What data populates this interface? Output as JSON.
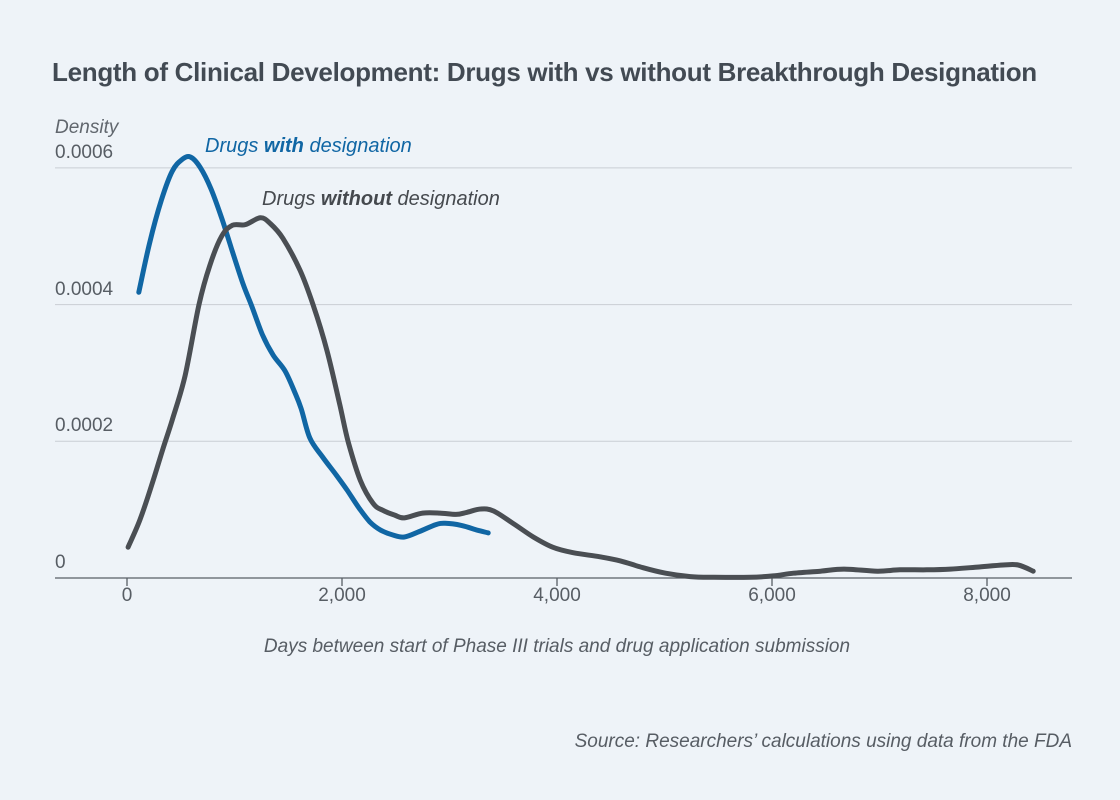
{
  "page": {
    "title": "Length of Clinical Development: Drugs with vs without Breakthrough Designation"
  },
  "legend": {
    "with": {
      "pre": "Drugs ",
      "bold": "with",
      "post": " designation"
    },
    "without": {
      "pre": "Drugs ",
      "bold": "without",
      "post": " designation"
    }
  },
  "chart": {
    "y_axis_title": "Density",
    "x_axis_caption": "Days between start of Phase III trials and drug application submission",
    "source": "Source: Researchers’ calculations using data from the FDA"
  },
  "colors": {
    "background": "#eef3f8",
    "with_designation_line": "#1066a4",
    "without_designation_line": "#4a4e53",
    "gridline": "#c9ced4",
    "axis": "#585e64",
    "title_text": "#424a53",
    "tick_text": "#575d64"
  },
  "chart_data": {
    "type": "line",
    "title": "Length of Clinical Development: Drugs with vs without Breakthrough Designation",
    "xlabel": "Days between start of Phase III trials and drug application submission",
    "ylabel": "Density",
    "xlim": [
      -670,
      8790
    ],
    "ylim": [
      0,
      0.00065
    ],
    "grid": "horizontal",
    "legend_position": "inline-curve-labels",
    "x_ticks": [
      {
        "value": 0,
        "label": "0"
      },
      {
        "value": 2000,
        "label": "2,000"
      },
      {
        "value": 4000,
        "label": "4,000"
      },
      {
        "value": 6000,
        "label": "6,000"
      },
      {
        "value": 8000,
        "label": "8,000"
      }
    ],
    "y_ticks": [
      {
        "value": 0,
        "label": "0"
      },
      {
        "value": 0.0002,
        "label": "0.0002"
      },
      {
        "value": 0.0004,
        "label": "0.0004"
      },
      {
        "value": 0.0006,
        "label": "0.0006"
      }
    ],
    "series": [
      {
        "name": "Drugs with designation",
        "color": "#1066a4",
        "points": [
          [
            110,
            0.000418
          ],
          [
            210,
            0.00049
          ],
          [
            320,
            0.000553
          ],
          [
            420,
            0.000595
          ],
          [
            510,
            0.000612
          ],
          [
            590,
            0.000616
          ],
          [
            680,
            0.000601
          ],
          [
            780,
            0.00057
          ],
          [
            880,
            0.000527
          ],
          [
            980,
            0.000478
          ],
          [
            1080,
            0.00043
          ],
          [
            1160,
            0.000398
          ],
          [
            1260,
            0.000356
          ],
          [
            1360,
            0.000326
          ],
          [
            1470,
            0.000303
          ],
          [
            1560,
            0.000272
          ],
          [
            1620,
            0.000248
          ],
          [
            1700,
            0.000205
          ],
          [
            1820,
            0.000177
          ],
          [
            1950,
            0.00015
          ],
          [
            2050,
            0.000128
          ],
          [
            2160,
            0.000102
          ],
          [
            2260,
            8.2e-05
          ],
          [
            2360,
            7e-05
          ],
          [
            2470,
            6.3e-05
          ],
          [
            2580,
            6e-05
          ],
          [
            2720,
            6.8e-05
          ],
          [
            2870,
            7.8e-05
          ],
          [
            2960,
            8e-05
          ],
          [
            3110,
            7.7e-05
          ],
          [
            3260,
            7e-05
          ],
          [
            3360,
            6.6e-05
          ]
        ]
      },
      {
        "name": "Drugs without designation",
        "color": "#4a4e53",
        "points": [
          [
            10,
            4.5e-05
          ],
          [
            120,
            8.5e-05
          ],
          [
            230,
            0.000136
          ],
          [
            330,
            0.000187
          ],
          [
            420,
            0.000231
          ],
          [
            540,
            0.000296
          ],
          [
            670,
            0.0004
          ],
          [
            770,
            0.000457
          ],
          [
            880,
            0.0005
          ],
          [
            980,
            0.000516
          ],
          [
            1100,
            0.000517
          ],
          [
            1240,
            0.000527
          ],
          [
            1330,
            0.000519
          ],
          [
            1450,
            0.000497
          ],
          [
            1610,
            0.00045
          ],
          [
            1730,
            0.0004
          ],
          [
            1860,
            0.000333
          ],
          [
            1980,
            0.000253
          ],
          [
            2060,
            0.000198
          ],
          [
            2170,
            0.000143
          ],
          [
            2290,
            0.000109
          ],
          [
            2380,
            9.9e-05
          ],
          [
            2490,
            9.2e-05
          ],
          [
            2580,
            8.8e-05
          ],
          [
            2750,
            9.5e-05
          ],
          [
            2910,
            9.5e-05
          ],
          [
            3060,
            9.3e-05
          ],
          [
            3160,
            9.6e-05
          ],
          [
            3290,
            0.000101
          ],
          [
            3410,
            9.8e-05
          ],
          [
            3590,
            8e-05
          ],
          [
            3780,
            6e-05
          ],
          [
            3960,
            4.5e-05
          ],
          [
            4150,
            3.7e-05
          ],
          [
            4400,
            3.1e-05
          ],
          [
            4590,
            2.5e-05
          ],
          [
            4800,
            1.5e-05
          ],
          [
            5010,
            7e-06
          ],
          [
            5240,
            2e-06
          ],
          [
            5460,
            1e-06
          ],
          [
            5800,
            1e-06
          ],
          [
            6010,
            3e-06
          ],
          [
            6200,
            7e-06
          ],
          [
            6450,
            1e-05
          ],
          [
            6670,
            1.3e-05
          ],
          [
            6980,
            1e-05
          ],
          [
            7190,
            1.2e-05
          ],
          [
            7440,
            1.2e-05
          ],
          [
            7660,
            1.3e-05
          ],
          [
            7910,
            1.6e-05
          ],
          [
            8150,
            1.9e-05
          ],
          [
            8290,
            1.9e-05
          ],
          [
            8430,
            1e-05
          ]
        ]
      }
    ]
  }
}
